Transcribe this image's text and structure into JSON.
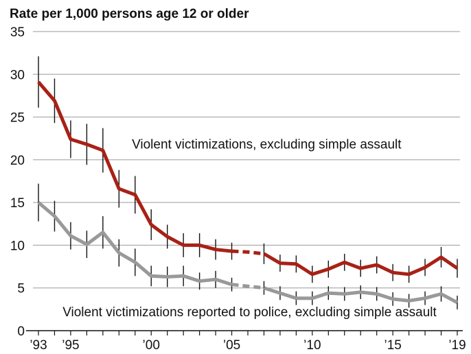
{
  "chart_data": {
    "type": "line",
    "title": "Rate per 1,000 persons age 12 or older",
    "ylim": [
      0,
      35
    ],
    "yticks": [
      0,
      5,
      10,
      15,
      20,
      25,
      30,
      35
    ],
    "xlim": [
      1993,
      2019
    ],
    "xticks": [
      {
        "value": 1993,
        "label": "’93"
      },
      {
        "value": 1995,
        "label": "’95"
      },
      {
        "value": 2000,
        "label": "’00"
      },
      {
        "value": 2005,
        "label": "’05"
      },
      {
        "value": 2010,
        "label": "’10"
      },
      {
        "value": 2015,
        "label": "’15"
      },
      {
        "value": 2019,
        "label": "’19"
      }
    ],
    "grid": "horizontal",
    "x": [
      1993,
      1994,
      1995,
      1996,
      1997,
      1998,
      1999,
      2000,
      2001,
      2002,
      2003,
      2004,
      2005,
      2006,
      2007,
      2008,
      2009,
      2010,
      2011,
      2012,
      2013,
      2014,
      2015,
      2016,
      2017,
      2018,
      2019
    ],
    "series": [
      {
        "name": "Violent victimizations, excluding simple assault",
        "color": "#a82116",
        "values": [
          29.1,
          26.9,
          22.4,
          21.8,
          21.1,
          16.6,
          15.9,
          12.4,
          11.0,
          10.0,
          10.0,
          9.5,
          9.3,
          9.2,
          9.0,
          7.9,
          7.8,
          6.6,
          7.2,
          8.0,
          7.3,
          7.7,
          6.8,
          6.6,
          7.4,
          8.6,
          7.3
        ],
        "errors": [
          3.0,
          2.6,
          2.2,
          2.4,
          2.6,
          2.2,
          2.2,
          1.8,
          1.4,
          1.4,
          1.4,
          1.2,
          1.0,
          0.0,
          1.2,
          1.0,
          1.0,
          1.0,
          1.0,
          1.0,
          1.0,
          1.0,
          1.0,
          1.0,
          1.0,
          1.2,
          1.1
        ],
        "dashed_between": [
          [
            2005,
            2007
          ]
        ]
      },
      {
        "name": "Violent victimizations reported to police, excluding simple assault",
        "color": "#999999",
        "values": [
          15.0,
          13.4,
          11.1,
          10.1,
          11.5,
          9.1,
          8.0,
          6.4,
          6.3,
          6.4,
          5.8,
          6.0,
          5.4,
          5.2,
          5.0,
          4.4,
          3.8,
          3.8,
          4.4,
          4.3,
          4.5,
          4.3,
          3.7,
          3.5,
          3.8,
          4.3,
          3.3
        ],
        "errors": [
          2.2,
          1.8,
          1.6,
          1.6,
          1.9,
          1.6,
          1.6,
          1.2,
          1.2,
          1.2,
          1.0,
          1.0,
          0.8,
          0.0,
          0.8,
          0.8,
          0.8,
          0.8,
          0.8,
          0.8,
          0.8,
          0.8,
          0.8,
          0.8,
          0.8,
          0.9,
          0.8
        ],
        "dashed_between": [
          [
            2005,
            2007
          ]
        ]
      }
    ],
    "annotations": [
      {
        "text": "Violent victimizations, excluding simple assault",
        "x": 1998.8,
        "y": 21.3
      },
      {
        "text": "Violent victimizations reported to police, excluding simple assault",
        "x": 1994.5,
        "y": 1.7
      }
    ]
  }
}
